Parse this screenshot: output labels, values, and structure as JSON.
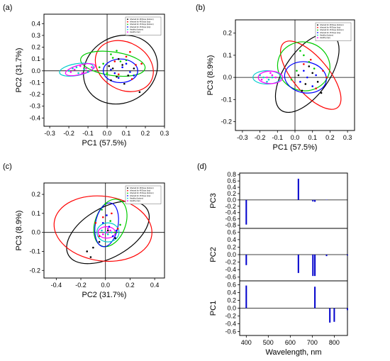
{
  "panel_labels": [
    "(a)",
    "(b)",
    "(c)",
    "(d)"
  ],
  "chart_data": [
    {
      "panel": "(a)",
      "type": "scatter",
      "xlabel": "PC1 (57.5%)",
      "ylabel": "PC2 (31.7%)",
      "xlim": [
        -0.33,
        0.3
      ],
      "ylim": [
        -0.47,
        0.48
      ],
      "xticks": [
        "-0.3",
        "-0.2",
        "-0.1",
        "0.0",
        "0.1",
        "0.2",
        "0.3"
      ],
      "yticks": [
        "-0.4",
        "-0.3",
        "-0.2",
        "-0.1",
        "0.0",
        "0.1",
        "0.2",
        "0.3",
        "0.4"
      ],
      "legend_position": "top-right",
      "series": [
        {
          "name": "Infected for 48 Days (bottom)",
          "color": "#000000",
          "points": [
            [
              0.03,
              0.02
            ],
            [
              0.05,
              -0.05
            ],
            [
              0.08,
              0.05
            ],
            [
              0.11,
              -0.04
            ],
            [
              0.02,
              -0.08
            ],
            [
              0.14,
              0.02
            ],
            [
              0.06,
              0.1
            ],
            [
              0.17,
              -0.18
            ],
            [
              0.09,
              -0.11
            ],
            [
              0.01,
              0.04
            ]
          ]
        },
        {
          "name": "Infected for 48 Days (top)",
          "color": "#ff0000",
          "points": [
            [
              0.1,
              0.12
            ],
            [
              0.15,
              0.05
            ],
            [
              0.06,
              -0.03
            ],
            [
              0.12,
              0.16
            ],
            [
              0.18,
              0.06
            ],
            [
              0.04,
              0.08
            ],
            [
              0.13,
              -0.07
            ]
          ]
        },
        {
          "name": "Infected for 15 Days (bottom)",
          "color": "#00cc00",
          "points": [
            [
              -0.02,
              0.06
            ],
            [
              0.03,
              0.11
            ],
            [
              0.0,
              -0.02
            ],
            [
              0.07,
              0.08
            ],
            [
              0.05,
              0.17
            ],
            [
              0.1,
              0.09
            ],
            [
              -0.04,
              0.03
            ],
            [
              0.02,
              0.14
            ]
          ]
        },
        {
          "name": "Infected for 15 Days (top)",
          "color": "#0000ff",
          "points": [
            [
              0.04,
              -0.02
            ],
            [
              0.08,
              0.03
            ],
            [
              0.12,
              -0.01
            ],
            [
              0.06,
              -0.06
            ],
            [
              0.1,
              0.06
            ],
            [
              0.02,
              0.01
            ],
            [
              0.14,
              -0.04
            ]
          ]
        },
        {
          "name": "Healthy (bottom)",
          "color": "#00cccc",
          "points": [
            [
              -0.18,
              0.02
            ],
            [
              -0.15,
              -0.02
            ],
            [
              -0.2,
              0.0
            ],
            [
              -0.12,
              0.01
            ],
            [
              -0.16,
              0.03
            ],
            [
              -0.1,
              -0.01
            ]
          ]
        },
        {
          "name": "Healthy (top)",
          "color": "#ff00ff",
          "points": [
            [
              -0.17,
              0.01
            ],
            [
              -0.14,
              0.04
            ],
            [
              -0.19,
              -0.01
            ],
            [
              -0.11,
              0.02
            ],
            [
              -0.13,
              -0.02
            ],
            [
              -0.08,
              0.03
            ]
          ]
        }
      ],
      "ellipses": [
        {
          "color": "#000000",
          "cx": 0.07,
          "cy": 0.01,
          "rx": 0.2,
          "ry": 0.28,
          "angle": 30
        },
        {
          "color": "#ff0000",
          "cx": 0.09,
          "cy": 0.04,
          "rx": 0.16,
          "ry": 0.2,
          "angle": -30
        },
        {
          "color": "#00cc00",
          "cx": 0.03,
          "cy": 0.06,
          "rx": 0.17,
          "ry": 0.1,
          "angle": -8
        },
        {
          "color": "#0000ff",
          "cx": 0.07,
          "cy": 0.0,
          "rx": 0.09,
          "ry": 0.1,
          "angle": 0
        },
        {
          "color": "#00cccc",
          "cx": -0.16,
          "cy": 0.01,
          "rx": 0.09,
          "ry": 0.05,
          "angle": 10
        },
        {
          "color": "#ff00ff",
          "cx": -0.14,
          "cy": 0.01,
          "rx": 0.08,
          "ry": 0.04,
          "angle": 15
        }
      ]
    },
    {
      "panel": "(b)",
      "type": "scatter",
      "xlabel": "PC1 (57.5%)",
      "ylabel": "PC3 (8.9%)",
      "xlim": [
        -0.34,
        0.34
      ],
      "ylim": [
        -0.24,
        0.26
      ],
      "xticks": [
        "-0.3",
        "-0.2",
        "-0.1",
        "0.0",
        "0.1",
        "0.2",
        "0.3"
      ],
      "yticks": [
        "-0.2",
        "-0.1",
        "0.0",
        "0.1",
        "0.2"
      ],
      "legend_position": "top-right",
      "series": [
        {
          "name": "Infected for 48 Days (bottom)",
          "color": "#000000",
          "points": [
            [
              0.06,
              -0.03
            ],
            [
              0.1,
              0.02
            ],
            [
              0.04,
              -0.06
            ],
            [
              0.13,
              -0.02
            ],
            [
              0.08,
              0.05
            ],
            [
              0.15,
              -0.07
            ],
            [
              0.02,
              0.01
            ]
          ]
        },
        {
          "name": "Infected for 48 Days (top)",
          "color": "#ff0000",
          "points": [
            [
              0.09,
              0.08
            ],
            [
              0.16,
              0.03
            ],
            [
              0.05,
              0.06
            ],
            [
              0.12,
              -0.05
            ],
            [
              0.18,
              0.0
            ]
          ]
        },
        {
          "name": "Infected for 15 Days (bottom)",
          "color": "#00cc00",
          "points": [
            [
              0.01,
              0.03
            ],
            [
              0.05,
              0.1
            ],
            [
              -0.02,
              -0.01
            ],
            [
              0.08,
              0.07
            ],
            [
              0.03,
              0.12
            ],
            [
              0.11,
              0.04
            ]
          ]
        },
        {
          "name": "Infected for 15 Days (top)",
          "color": "#0000ff",
          "points": [
            [
              0.03,
              -0.02
            ],
            [
              0.07,
              0.0
            ],
            [
              0.1,
              -0.04
            ],
            [
              0.05,
              0.03
            ],
            [
              0.12,
              0.01
            ]
          ]
        },
        {
          "name": "Healthy (bottom)",
          "color": "#00cccc",
          "points": [
            [
              -0.18,
              0.0
            ],
            [
              -0.15,
              -0.01
            ],
            [
              -0.2,
              0.01
            ],
            [
              -0.13,
              0.0
            ],
            [
              -0.16,
              -0.02
            ]
          ]
        },
        {
          "name": "Healthy (top)",
          "color": "#ff00ff",
          "points": [
            [
              -0.16,
              0.0
            ],
            [
              -0.13,
              0.01
            ],
            [
              -0.19,
              -0.01
            ],
            [
              -0.11,
              0.0
            ],
            [
              -0.14,
              0.02
            ]
          ]
        }
      ],
      "ellipses": [
        {
          "color": "#000000",
          "cx": 0.07,
          "cy": 0.02,
          "rx": 0.26,
          "ry": 0.1,
          "angle": 55
        },
        {
          "color": "#ff0000",
          "cx": 0.09,
          "cy": 0.01,
          "rx": 0.24,
          "ry": 0.08,
          "angle": -50
        },
        {
          "color": "#00cc00",
          "cx": 0.05,
          "cy": 0.05,
          "rx": 0.15,
          "ry": 0.11,
          "angle": -15
        },
        {
          "color": "#0000ff",
          "cx": 0.06,
          "cy": 0.0,
          "rx": 0.12,
          "ry": 0.07,
          "angle": -10
        },
        {
          "color": "#00cccc",
          "cx": -0.16,
          "cy": 0.0,
          "rx": 0.08,
          "ry": 0.03,
          "angle": 0
        },
        {
          "color": "#ff00ff",
          "cx": -0.14,
          "cy": 0.0,
          "rx": 0.07,
          "ry": 0.028,
          "angle": 0
        }
      ]
    },
    {
      "panel": "(c)",
      "type": "scatter",
      "xlabel": "PC2 (31.7%)",
      "ylabel": "PC3 (8.9%)",
      "xlim": [
        -0.5,
        0.48
      ],
      "ylim": [
        -0.24,
        0.26
      ],
      "xticks": [
        "-0.4",
        "-0.2",
        "0.0",
        "0.2",
        "0.4"
      ],
      "yticks": [
        "-0.2",
        "-0.1",
        "0.0",
        "0.1",
        "0.2"
      ],
      "legend_position": "top-right",
      "series": [
        {
          "name": "Infected for 48 Days (bottom)",
          "color": "#000000",
          "points": [
            [
              -0.15,
              -0.1
            ],
            [
              -0.12,
              -0.13
            ],
            [
              -0.05,
              -0.05
            ],
            [
              0.02,
              0.01
            ],
            [
              0.08,
              -0.03
            ],
            [
              -0.1,
              -0.08
            ]
          ]
        },
        {
          "name": "Infected for 48 Days (top)",
          "color": "#ff0000",
          "points": [
            [
              -0.08,
              0.05
            ],
            [
              0.05,
              0.1
            ],
            [
              -0.02,
              0.08
            ],
            [
              0.1,
              0.02
            ],
            [
              -0.05,
              -0.02
            ]
          ]
        },
        {
          "name": "Infected for 15 Days (bottom)",
          "color": "#00cc00",
          "points": [
            [
              0.04,
              0.06
            ],
            [
              -0.03,
              0.12
            ],
            [
              0.08,
              0.0
            ],
            [
              0.0,
              0.15
            ],
            [
              0.12,
              0.04
            ]
          ]
        },
        {
          "name": "Infected for 15 Days (top)",
          "color": "#0000ff",
          "points": [
            [
              0.03,
              0.03
            ],
            [
              -0.02,
              0.05
            ],
            [
              0.06,
              -0.02
            ],
            [
              0.01,
              0.09
            ],
            [
              0.09,
              0.01
            ]
          ]
        },
        {
          "name": "Healthy (bottom)",
          "color": "#00cccc",
          "points": [
            [
              0.0,
              0.0
            ],
            [
              0.02,
              -0.01
            ],
            [
              -0.03,
              0.01
            ],
            [
              0.05,
              0.0
            ]
          ]
        },
        {
          "name": "Healthy (top)",
          "color": "#ff00ff",
          "points": [
            [
              0.01,
              0.0
            ],
            [
              -0.02,
              -0.01
            ],
            [
              0.04,
              0.01
            ],
            [
              0.02,
              0.02
            ]
          ]
        }
      ],
      "ellipses": [
        {
          "color": "#000000",
          "cx": 0.02,
          "cy": 0.0,
          "rx": 0.37,
          "ry": 0.13,
          "angle": 30
        },
        {
          "color": "#ff0000",
          "cx": -0.02,
          "cy": 0.02,
          "rx": 0.4,
          "ry": 0.17,
          "angle": -8
        },
        {
          "color": "#00cc00",
          "cx": 0.04,
          "cy": 0.05,
          "rx": 0.2,
          "ry": 0.08,
          "angle": 70
        },
        {
          "color": "#0000ff",
          "cx": 0.01,
          "cy": 0.04,
          "rx": 0.18,
          "ry": 0.06,
          "angle": 80
        },
        {
          "color": "#00cccc",
          "cx": 0.02,
          "cy": 0.0,
          "rx": 0.09,
          "ry": 0.05,
          "angle": 0
        },
        {
          "color": "#ff00ff",
          "cx": 0.01,
          "cy": 0.0,
          "rx": 0.07,
          "ry": 0.03,
          "angle": 0
        }
      ]
    },
    {
      "panel": "(d)",
      "type": "bar",
      "xlabel": "Wavelength, nm",
      "xlim": [
        370,
        860
      ],
      "xticks": [
        "400",
        "500",
        "600",
        "700",
        "800"
      ],
      "subplots": [
        {
          "ylabel": "PC3",
          "ylim": [
            -0.9,
            0.85
          ],
          "yticks": [
            "0.8",
            "0.6",
            "0.4",
            "0.2",
            "0.0",
            "-0.2",
            "-0.4",
            "-0.6",
            "-0.8"
          ],
          "bars": [
            {
              "x": 400,
              "value": -0.78
            },
            {
              "x": 637,
              "value": 0.67
            },
            {
              "x": 703,
              "value": -0.05
            },
            {
              "x": 712,
              "value": -0.06
            },
            {
              "x": 765,
              "value": 0.01
            }
          ]
        },
        {
          "ylabel": "PC2",
          "ylim": [
            -0.7,
            0.7
          ],
          "yticks": [
            "0.6",
            "0.4",
            "0.2",
            "0.0",
            "-0.2",
            "-0.4",
            "-0.6"
          ],
          "bars": [
            {
              "x": 400,
              "value": -0.28
            },
            {
              "x": 637,
              "value": -0.49
            },
            {
              "x": 703,
              "value": -0.57
            },
            {
              "x": 712,
              "value": -0.57
            },
            {
              "x": 765,
              "value": -0.04
            },
            {
              "x": 860,
              "value": -0.02
            }
          ]
        },
        {
          "ylabel": "PC1",
          "ylim": [
            -0.7,
            0.7
          ],
          "yticks": [
            "0.6",
            "0.4",
            "0.2",
            "0.0",
            "-0.2",
            "-0.4",
            "-0.6"
          ],
          "bars": [
            {
              "x": 400,
              "value": 0.58
            },
            {
              "x": 712,
              "value": 0.55
            },
            {
              "x": 780,
              "value": -0.37
            },
            {
              "x": 800,
              "value": -0.35
            },
            {
              "x": 860,
              "value": -0.05
            }
          ]
        }
      ],
      "bar_color": "#0000cc"
    }
  ]
}
